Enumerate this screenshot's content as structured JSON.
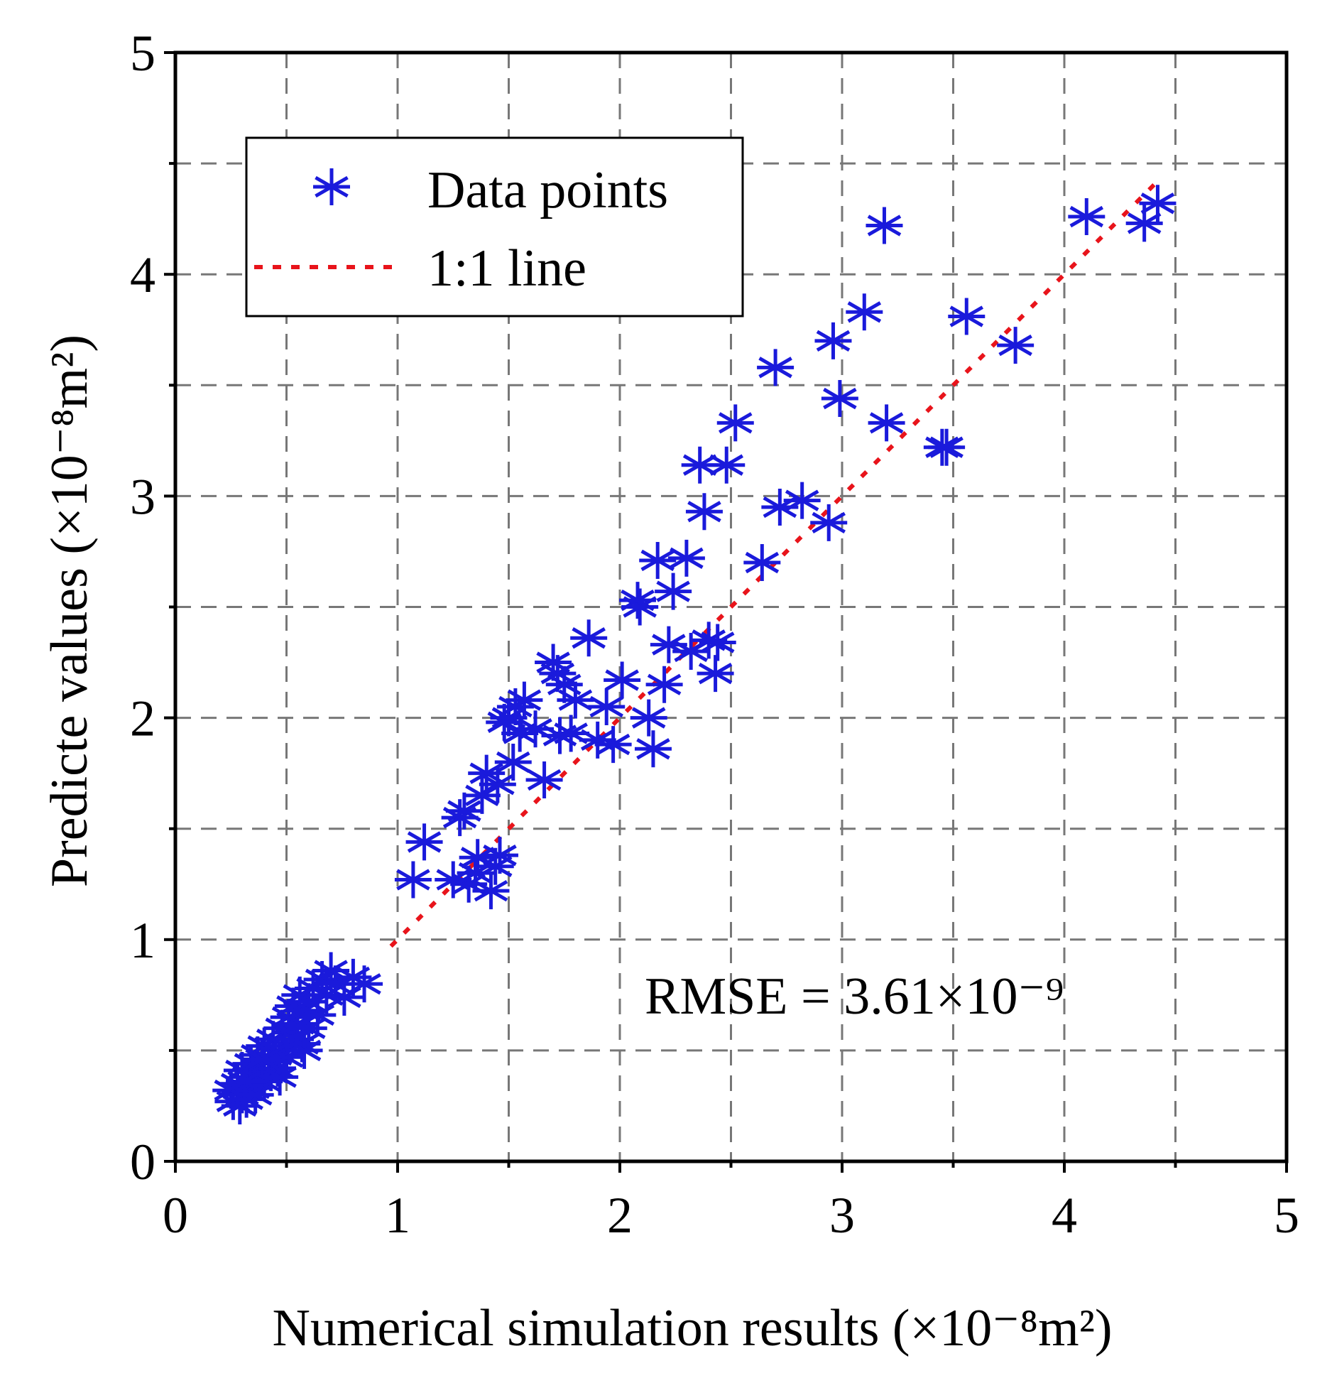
{
  "chart_data": {
    "type": "scatter",
    "xlabel": "Numerical simulation results (×10⁻⁸m²)",
    "ylabel": "Predicte values (×10⁻⁸m²)",
    "xlim": [
      0,
      5
    ],
    "ylim": [
      0,
      5
    ],
    "xticks": [
      "0",
      "1",
      "2",
      "3",
      "4",
      "5"
    ],
    "yticks": [
      "0",
      "1",
      "2",
      "3",
      "4",
      "5"
    ],
    "grid": true,
    "legend": {
      "placement": "top-left",
      "entries": [
        "Data points",
        "1:1 line"
      ]
    },
    "annotation": {
      "text": "RMSE = 3.61×10⁻⁹",
      "placement": "bottom-right"
    },
    "reference_line": {
      "name": "1:1 line",
      "x": [
        0.97,
        4.42
      ],
      "y": [
        0.97,
        4.42
      ],
      "color": "#e8141b"
    },
    "marker_color": "#1a1adb",
    "series": [
      {
        "name": "Data points",
        "points": [
          [
            0.25,
            0.32
          ],
          [
            0.26,
            0.27
          ],
          [
            0.28,
            0.35
          ],
          [
            0.29,
            0.25
          ],
          [
            0.3,
            0.3
          ],
          [
            0.3,
            0.41
          ],
          [
            0.32,
            0.28
          ],
          [
            0.33,
            0.38
          ],
          [
            0.34,
            0.44
          ],
          [
            0.35,
            0.33
          ],
          [
            0.36,
            0.3
          ],
          [
            0.37,
            0.48
          ],
          [
            0.38,
            0.4
          ],
          [
            0.4,
            0.36
          ],
          [
            0.4,
            0.52
          ],
          [
            0.42,
            0.45
          ],
          [
            0.43,
            0.4
          ],
          [
            0.44,
            0.55
          ],
          [
            0.45,
            0.48
          ],
          [
            0.46,
            0.42
          ],
          [
            0.48,
            0.6
          ],
          [
            0.49,
            0.52
          ],
          [
            0.5,
            0.47
          ],
          [
            0.51,
            0.65
          ],
          [
            0.52,
            0.58
          ],
          [
            0.53,
            0.7
          ],
          [
            0.54,
            0.55
          ],
          [
            0.55,
            0.62
          ],
          [
            0.56,
            0.75
          ],
          [
            0.57,
            0.53
          ],
          [
            0.58,
            0.68
          ],
          [
            0.6,
            0.72
          ],
          [
            0.6,
            0.6
          ],
          [
            0.62,
            0.78
          ],
          [
            0.64,
            0.66
          ],
          [
            0.66,
            0.82
          ],
          [
            0.68,
            0.75
          ],
          [
            0.7,
            0.86
          ],
          [
            0.72,
            0.8
          ],
          [
            0.76,
            0.74
          ],
          [
            0.8,
            0.83
          ],
          [
            0.85,
            0.8
          ],
          [
            0.31,
            0.36
          ],
          [
            0.47,
            0.38
          ],
          [
            0.39,
            0.46
          ],
          [
            0.58,
            0.5
          ],
          [
            1.07,
            1.27
          ],
          [
            1.12,
            1.44
          ],
          [
            1.25,
            1.27
          ],
          [
            1.28,
            1.55
          ],
          [
            1.3,
            1.58
          ],
          [
            1.32,
            1.25
          ],
          [
            1.35,
            1.3
          ],
          [
            1.36,
            1.37
          ],
          [
            1.38,
            1.65
          ],
          [
            1.4,
            1.75
          ],
          [
            1.42,
            1.22
          ],
          [
            1.44,
            1.33
          ],
          [
            1.45,
            1.7
          ],
          [
            1.46,
            1.38
          ],
          [
            1.48,
            1.98
          ],
          [
            1.5,
            2.0
          ],
          [
            1.52,
            1.8
          ],
          [
            1.53,
            2.05
          ],
          [
            1.55,
            1.93
          ],
          [
            1.57,
            2.08
          ],
          [
            1.62,
            1.95
          ],
          [
            1.66,
            1.72
          ],
          [
            1.7,
            2.25
          ],
          [
            1.72,
            2.2
          ],
          [
            1.73,
            1.92
          ],
          [
            1.75,
            2.15
          ],
          [
            1.78,
            1.93
          ],
          [
            1.8,
            2.08
          ],
          [
            1.86,
            2.36
          ],
          [
            1.9,
            1.9
          ],
          [
            1.94,
            2.05
          ],
          [
            1.97,
            1.88
          ],
          [
            2.01,
            2.17
          ],
          [
            2.08,
            2.53
          ],
          [
            2.09,
            2.5
          ],
          [
            2.13,
            2.0
          ],
          [
            2.15,
            1.86
          ],
          [
            2.17,
            2.71
          ],
          [
            2.2,
            2.15
          ],
          [
            2.22,
            2.33
          ],
          [
            2.24,
            2.57
          ],
          [
            2.3,
            2.72
          ],
          [
            2.32,
            2.3
          ],
          [
            2.36,
            3.14
          ],
          [
            2.38,
            2.93
          ],
          [
            2.4,
            2.35
          ],
          [
            2.43,
            2.2
          ],
          [
            2.44,
            2.34
          ],
          [
            2.48,
            3.14
          ],
          [
            2.52,
            3.33
          ],
          [
            2.64,
            2.7
          ],
          [
            2.7,
            3.58
          ],
          [
            2.72,
            2.95
          ],
          [
            2.82,
            2.98
          ],
          [
            2.94,
            2.88
          ],
          [
            2.96,
            3.7
          ],
          [
            2.99,
            3.44
          ],
          [
            3.1,
            3.83
          ],
          [
            3.19,
            4.22
          ],
          [
            3.2,
            3.33
          ],
          [
            3.45,
            3.22
          ],
          [
            3.47,
            3.22
          ],
          [
            3.56,
            3.81
          ],
          [
            3.78,
            3.68
          ],
          [
            4.1,
            4.26
          ],
          [
            4.36,
            4.23
          ],
          [
            4.42,
            4.32
          ]
        ]
      }
    ]
  }
}
